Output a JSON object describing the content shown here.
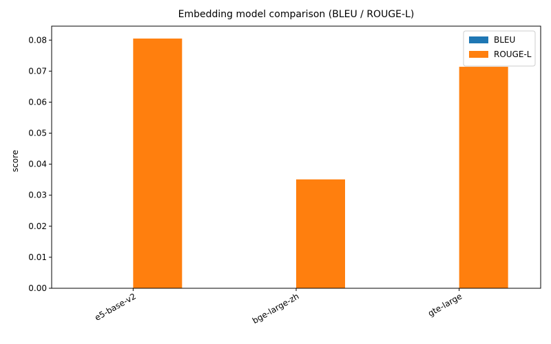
{
  "chart_data": {
    "type": "bar",
    "title": "Embedding model comparison (BLEU / ROUGE-L)",
    "xlabel": "",
    "ylabel": "score",
    "categories": [
      "e5-base-v2",
      "bge-large-zh",
      "gte-large"
    ],
    "series": [
      {
        "name": "BLEU",
        "values": [
          0,
          0,
          0
        ],
        "color": "#1f77b4"
      },
      {
        "name": "ROUGE-L",
        "values": [
          0.0805,
          0.0351,
          0.0714
        ],
        "color": "#ff7f0e"
      }
    ],
    "ylim": [
      0,
      0.0845
    ],
    "yticks": [
      "0.00",
      "0.01",
      "0.02",
      "0.03",
      "0.04",
      "0.05",
      "0.06",
      "0.07",
      "0.08"
    ],
    "grid": false,
    "legend": "top-right"
  }
}
